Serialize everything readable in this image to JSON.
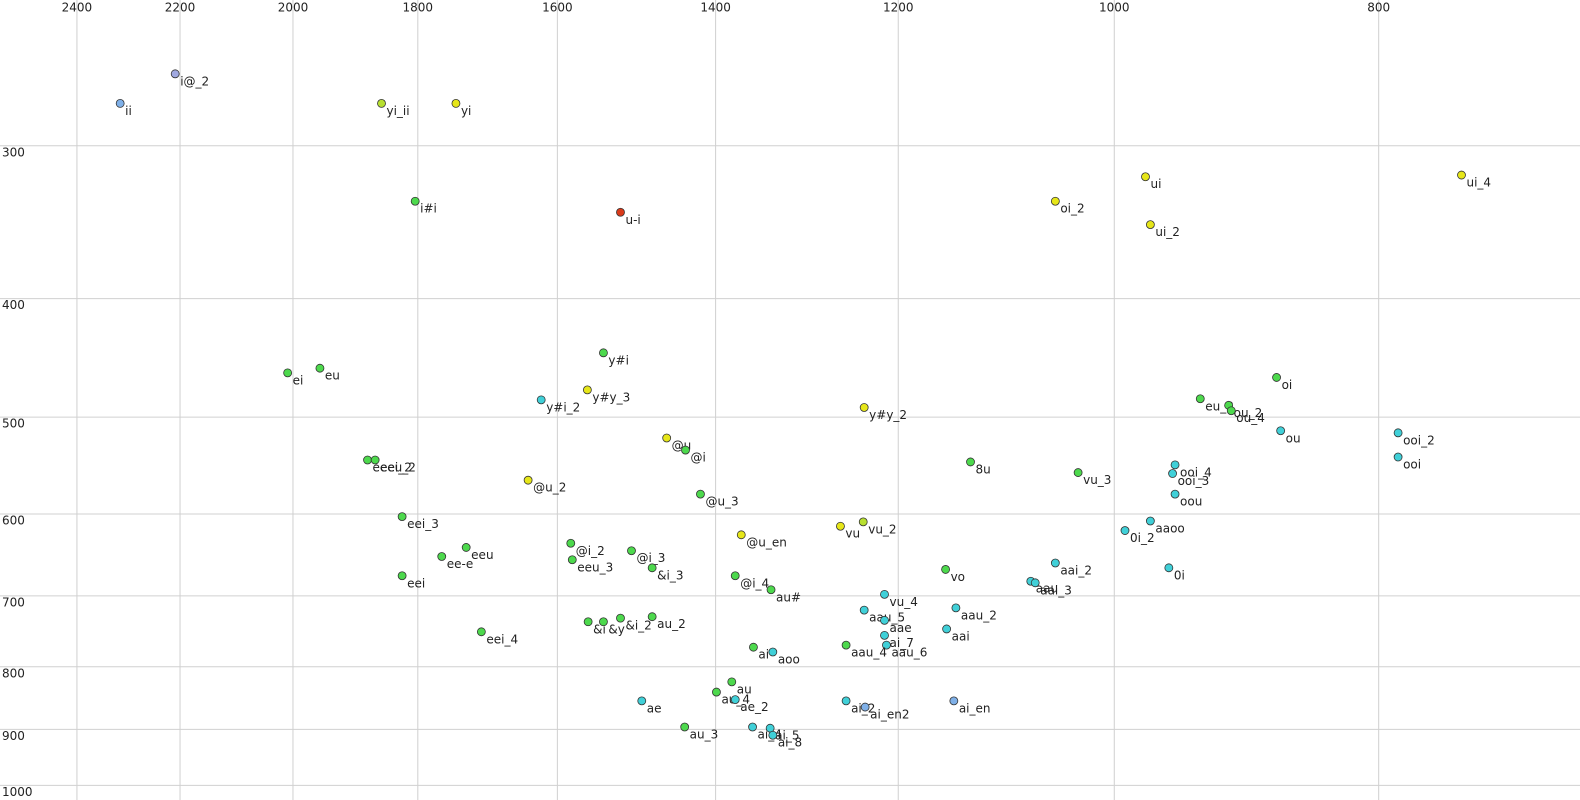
{
  "chart_data": {
    "type": "scatter",
    "xscale": "log",
    "yscale": "log",
    "grid": true,
    "xlim": [
      2561,
      675
    ],
    "ylim": [
      228,
      1028
    ],
    "xticks": [
      2400,
      2200,
      2000,
      1800,
      1600,
      1400,
      1200,
      1000,
      800
    ],
    "yticks": [
      300,
      400,
      500,
      600,
      700,
      800,
      900,
      1000
    ],
    "labels": [
      "ii",
      "i@_2",
      "yi_ii",
      "yi",
      "ui",
      "ui_4",
      "oi_2",
      "ui_2",
      "i#i",
      "u-i",
      "y#i",
      "oi",
      "ei",
      "eu",
      "y#y_3",
      "y#i_2",
      "y#y_2",
      "eu_3",
      "ou_2",
      "ou_4",
      "ou",
      "ooi_2",
      "ooi",
      "@u",
      "@i",
      "eeeu_2",
      "eei_2",
      "8u",
      "vu_3",
      "ooi_4",
      "ooi_3",
      "@u_2",
      "oou",
      "@u_3",
      "eei_3",
      "vu",
      "vu_2",
      "aaoo",
      "0i_2",
      "@u_en",
      "@i_2",
      "eeu",
      "@i_3",
      "ee-e",
      "eeu_3",
      "0i",
      "&i_3",
      "aai_2",
      "vo",
      "eei",
      "@i_4",
      "au#",
      "aau",
      "aai_3",
      "vu_4",
      "aau_2",
      "aai",
      "aau_5",
      "aae",
      "&i",
      "&y",
      "&i_2",
      "au_2",
      "ai_7",
      "aau_6",
      "aau_4",
      "eei_4",
      "ai",
      "aoo",
      "au",
      "au_4",
      "ae",
      "ae_2",
      "ai_2",
      "ai_en2",
      "ai_en",
      "au_3",
      "ai_4",
      "ai_5",
      "ai_8"
    ],
    "x": [
      2314,
      2209,
      1856,
      1743,
      974,
      746,
      1051,
      970,
      1804,
      1517,
      1539,
      872,
      2009,
      1955,
      1560,
      1622,
      1235,
      930,
      908,
      906,
      869,
      787,
      787,
      1459,
      1436,
      1878,
      1866,
      1129,
      1031,
      950,
      952,
      1640,
      950,
      1418,
      1824,
      1260,
      1236,
      970,
      991,
      1370,
      1582,
      1728,
      1503,
      1764,
      1580,
      955,
      1477,
      1051,
      1153,
      1824,
      1377,
      1336,
      1073,
      1069,
      1214,
      1143,
      1152,
      1235,
      1214,
      1559,
      1539,
      1517,
      1477,
      1214,
      1212,
      1254,
      1706,
      1356,
      1334,
      1381,
      1399,
      1490,
      1377,
      1254,
      1234,
      1145,
      1437,
      1357,
      1337,
      1334
    ],
    "values": [
      277,
      262,
      277,
      277,
      318,
      317,
      333,
      348,
      333,
      340,
      443,
      464,
      460,
      456,
      475,
      484,
      491,
      483,
      489,
      494,
      513,
      515,
      539,
      520,
      532,
      542,
      542,
      544,
      555,
      547,
      556,
      563,
      578,
      578,
      603,
      614,
      609,
      608,
      619,
      624,
      634,
      639,
      643,
      650,
      654,
      664,
      664,
      658,
      666,
      674,
      674,
      692,
      681,
      683,
      698,
      716,
      745,
      719,
      733,
      735,
      735,
      730,
      728,
      754,
      768,
      768,
      749,
      771,
      778,
      823,
      839,
      853,
      851,
      853,
      863,
      853,
      896,
      896,
      898,
      910
    ],
    "colors": [
      "#7fb0e8",
      "#a0a8e0",
      "#b8e030",
      "#e6e619",
      "#e6e619",
      "#e6e619",
      "#e6e619",
      "#e6e619",
      "#4dd94d",
      "#d93a1a",
      "#4dd94d",
      "#4dd94d",
      "#4dd94d",
      "#4dd94d",
      "#e6e619",
      "#40d0d8",
      "#e6e619",
      "#4dd94d",
      "#4dd94d",
      "#4dd94d",
      "#40d0d8",
      "#40d0d8",
      "#40d0d8",
      "#e6e619",
      "#4dd94d",
      "#4dd94d",
      "#4dd94d",
      "#4dd94d",
      "#4dd94d",
      "#40d0d8",
      "#40d0d8",
      "#e6e619",
      "#40d0d8",
      "#4dd94d",
      "#4dd94d",
      "#e6e619",
      "#b8e030",
      "#40d0d8",
      "#40d0d8",
      "#e6e619",
      "#4dd94d",
      "#4dd94d",
      "#4dd94d",
      "#4dd94d",
      "#4dd94d",
      "#40d0d8",
      "#4dd94d",
      "#40d0d8",
      "#4dd94d",
      "#4dd94d",
      "#4dd94d",
      "#4dd94d",
      "#40d0d8",
      "#40d0d8",
      "#40d0d8",
      "#40d0d8",
      "#40d0d8",
      "#40d0d8",
      "#40d0d8",
      "#4dd94d",
      "#4dd94d",
      "#4dd94d",
      "#4dd94d",
      "#40d0d8",
      "#40d0d8",
      "#4dd94d",
      "#4dd94d",
      "#4dd94d",
      "#40d0d8",
      "#4dd94d",
      "#4dd94d",
      "#40d0d8",
      "#40d0d8",
      "#40d0d8",
      "#7fb0e8",
      "#7fb0e8",
      "#4dd94d",
      "#40d0d8",
      "#40d0d8",
      "#40d0d8"
    ]
  }
}
